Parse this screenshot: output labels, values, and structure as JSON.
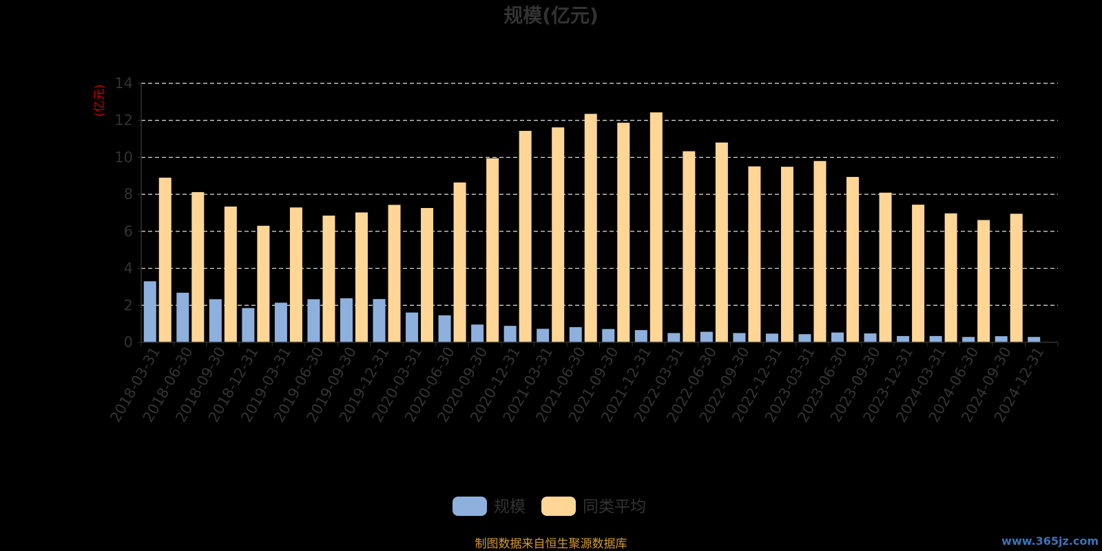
{
  "chart_data": {
    "type": "bar",
    "title": "规模(亿元)",
    "ylabel": "(亿元)",
    "xlabel": "",
    "ylim": [
      0,
      14
    ],
    "yticks": [
      0,
      2,
      4,
      6,
      8,
      10,
      12,
      14
    ],
    "grid": true,
    "legend_position": "bottom",
    "categories": [
      "2018-03-31",
      "2018-06-30",
      "2018-09-30",
      "2018-12-31",
      "2019-03-31",
      "2019-06-30",
      "2019-09-30",
      "2019-12-31",
      "2020-03-31",
      "2020-06-30",
      "2020-09-30",
      "2020-12-31",
      "2021-03-31",
      "2021-06-30",
      "2021-09-30",
      "2021-12-31",
      "2022-03-31",
      "2022-06-30",
      "2022-09-30",
      "2022-12-31",
      "2023-03-31",
      "2023-06-30",
      "2023-09-30",
      "2023-12-31",
      "2024-03-31",
      "2024-06-30",
      "2024-09-30",
      "2024-12-31"
    ],
    "series": [
      {
        "name": "规模",
        "color": "#8eb0dd",
        "values": [
          3.3,
          2.68,
          2.33,
          1.85,
          2.14,
          2.33,
          2.38,
          2.34,
          1.61,
          1.46,
          0.96,
          0.89,
          0.73,
          0.82,
          0.72,
          0.66,
          0.5,
          0.57,
          0.5,
          0.47,
          0.44,
          0.53,
          0.48,
          0.34,
          0.34,
          0.29,
          0.33,
          0.29
        ]
      },
      {
        "name": "同类平均",
        "color": "#ffd696",
        "values": [
          8.9,
          8.12,
          7.34,
          6.3,
          7.29,
          6.85,
          7.02,
          7.43,
          7.26,
          8.64,
          9.95,
          11.43,
          11.62,
          12.35,
          11.87,
          12.43,
          10.33,
          10.8,
          9.51,
          9.49,
          9.8,
          8.94,
          8.09,
          7.44,
          6.97,
          6.61,
          6.95,
          null
        ]
      }
    ]
  },
  "footer": {
    "source_note": "制图数据来自恒生聚源数据库",
    "source_note_color": "#d69a2d",
    "watermark": "www.365jz.com",
    "watermark_color": "#3a73b8"
  }
}
